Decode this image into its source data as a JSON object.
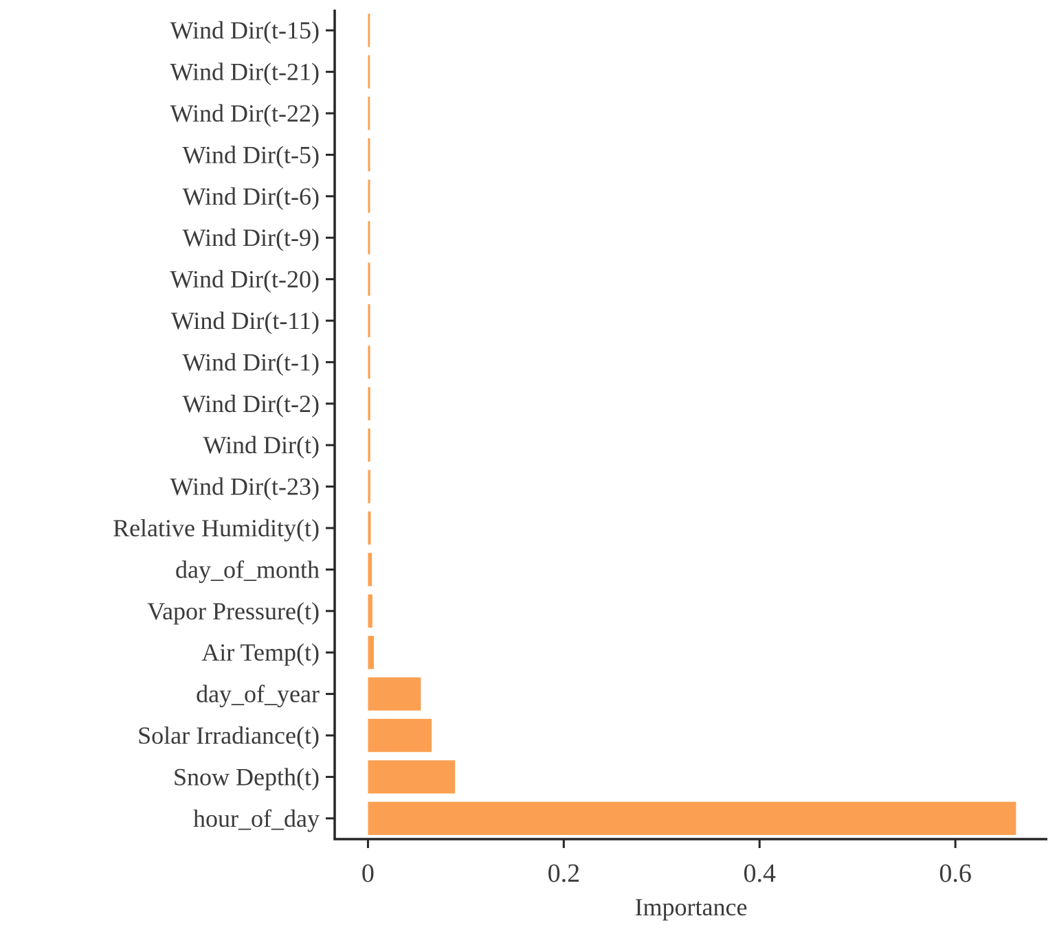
{
  "chart_data": {
    "type": "bar",
    "orientation": "horizontal",
    "title": "",
    "xlabel": "Importance",
    "ylabel": "",
    "categories_top_to_bottom": [
      "Wind Dir(t-15)",
      "Wind Dir(t-21)",
      "Wind Dir(t-22)",
      "Wind Dir(t-5)",
      "Wind Dir(t-6)",
      "Wind Dir(t-9)",
      "Wind Dir(t-20)",
      "Wind Dir(t-11)",
      "Wind Dir(t-1)",
      "Wind Dir(t-2)",
      "Wind Dir(t)",
      "Wind Dir(t-23)",
      "Relative Humidity(t)",
      "day_of_month",
      "Vapor Pressure(t)",
      "Air Temp(t)",
      "day_of_year",
      "Solar Irradiance(t)",
      "Snow Depth(t)",
      "hour_of_day"
    ],
    "values": [
      0.002,
      0.002,
      0.002,
      0.0021,
      0.0021,
      0.0021,
      0.0022,
      0.0022,
      0.0022,
      0.0023,
      0.0023,
      0.0024,
      0.0028,
      0.004,
      0.0045,
      0.006,
      0.054,
      0.065,
      0.089,
      0.662
    ],
    "x_ticks": [
      0,
      0.2,
      0.4,
      0.6
    ],
    "x_tick_labels": [
      "0",
      "0.2",
      "0.4",
      "0.6"
    ],
    "xlim": [
      -0.034,
      0.694
    ],
    "grid": false,
    "legend": "none",
    "bar_color": "#FBA052",
    "text_color": "#3B3B3B",
    "axis_color": "#262626"
  }
}
